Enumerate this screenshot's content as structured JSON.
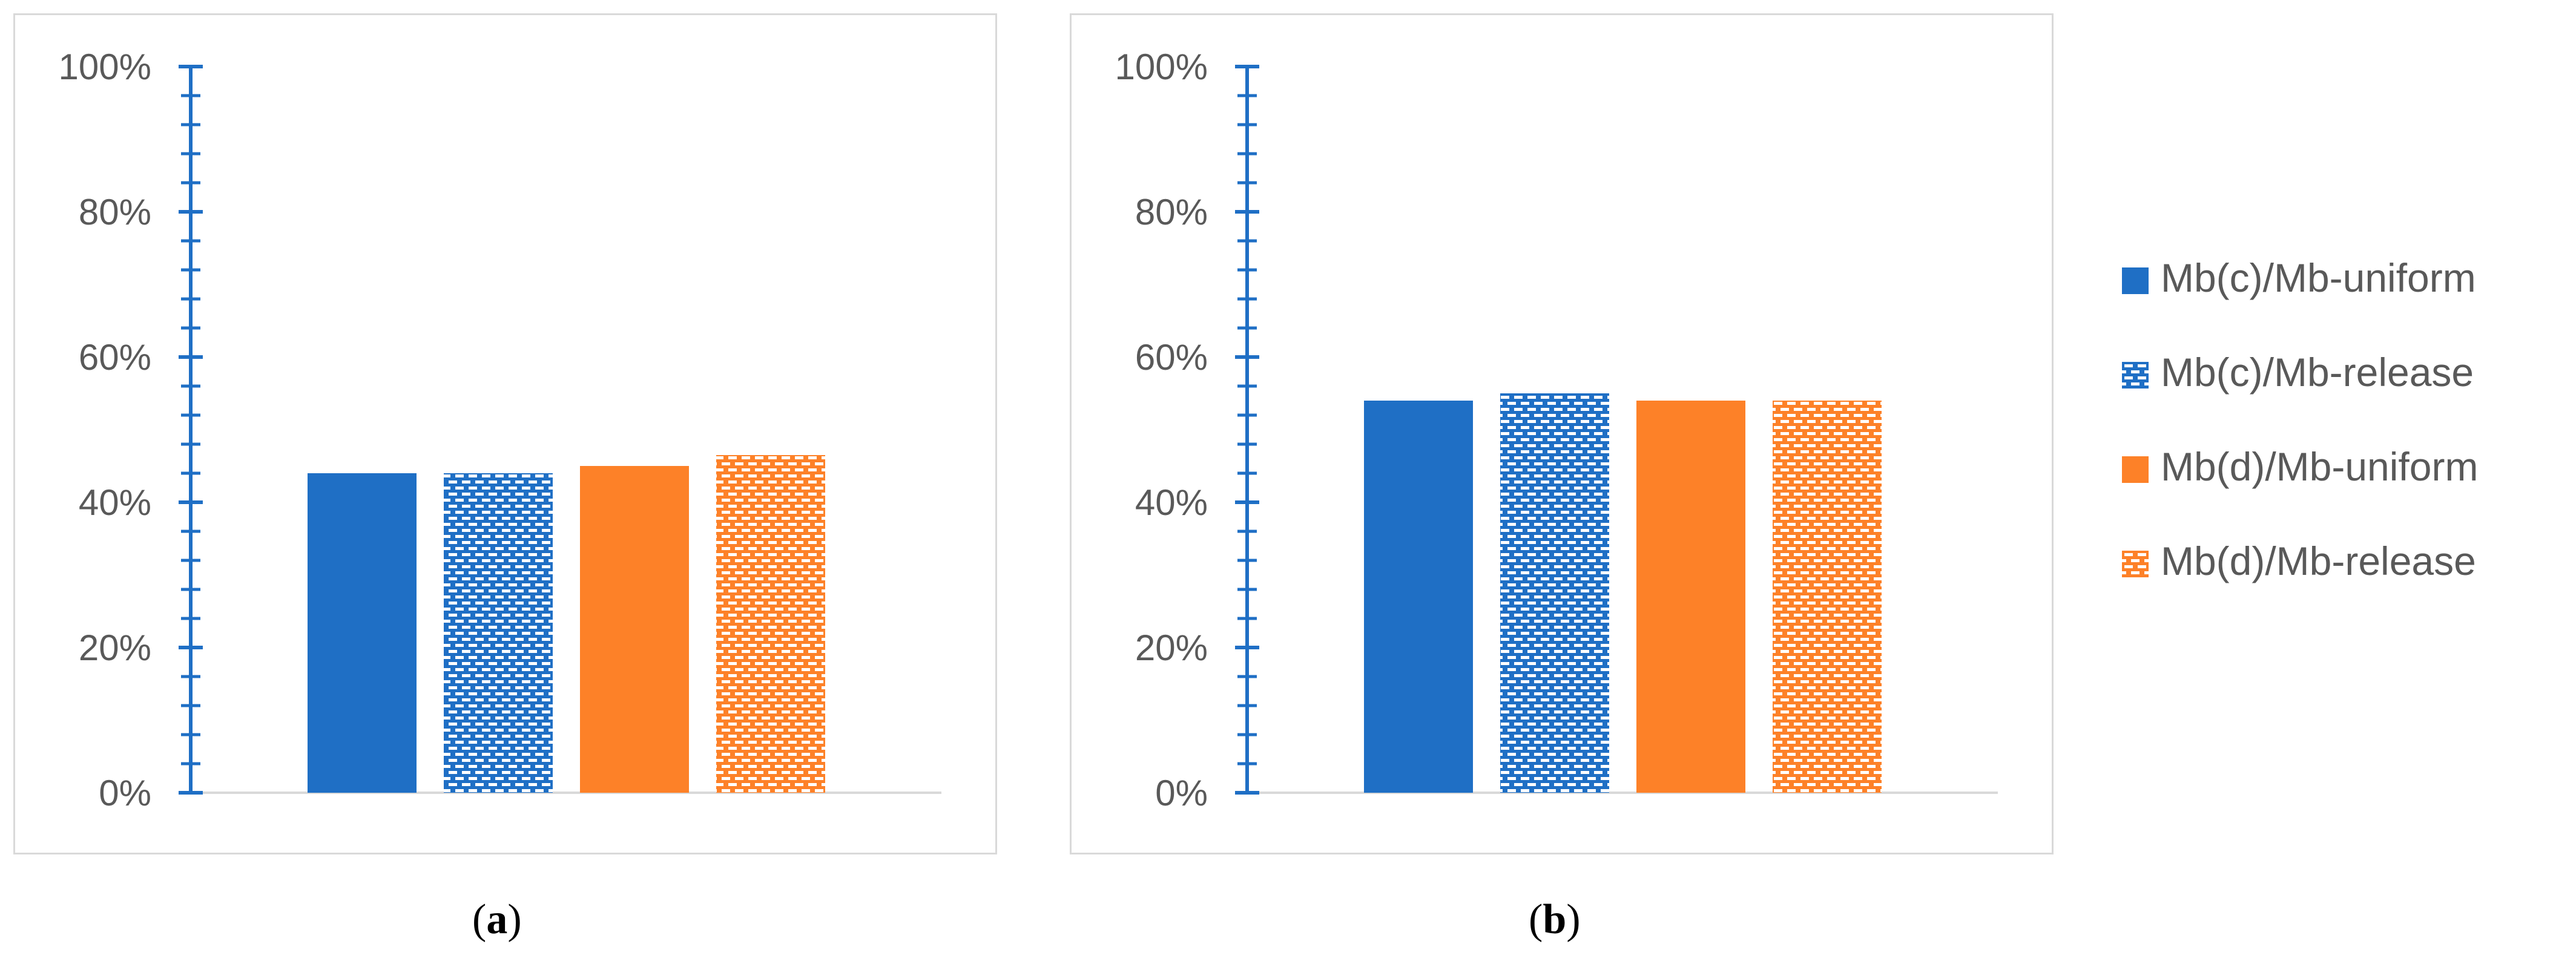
{
  "chart_data": [
    {
      "type": "bar",
      "panel": "(a)",
      "series": [
        {
          "name": "Mb(c)/Mb-uniform",
          "value": 44
        },
        {
          "name": "Mb(c)/Mb-release",
          "value": 44
        },
        {
          "name": "Mb(d)/Mb-uniform",
          "value": 45
        },
        {
          "name": "Mb(d)/Mb-release",
          "value": 46.5
        }
      ],
      "ylim": [
        0,
        100
      ],
      "yticks": [
        "0%",
        "20%",
        "40%",
        "60%",
        "80%",
        "100%"
      ],
      "grid": false,
      "legend": "right (shared)"
    },
    {
      "type": "bar",
      "panel": "(b)",
      "series": [
        {
          "name": "Mb(c)/Mb-uniform",
          "value": 54
        },
        {
          "name": "Mb(c)/Mb-release",
          "value": 55
        },
        {
          "name": "Mb(d)/Mb-uniform",
          "value": 54
        },
        {
          "name": "Mb(d)/Mb-release",
          "value": 54
        }
      ],
      "ylim": [
        0,
        100
      ],
      "yticks": [
        "0%",
        "20%",
        "40%",
        "60%",
        "80%",
        "100%"
      ],
      "grid": false,
      "legend": "right (shared)"
    }
  ],
  "legend": {
    "items": [
      {
        "label": "Mb(c)/Mb-uniform",
        "color": "#1f6fc5",
        "pattern": "solid"
      },
      {
        "label": "Mb(c)/Mb-release",
        "color": "#1f6fc5",
        "pattern": "dotted"
      },
      {
        "label": "Mb(d)/Mb-uniform",
        "color": "#fd8128",
        "pattern": "solid"
      },
      {
        "label": "Mb(d)/Mb-release",
        "color": "#fd8128",
        "pattern": "dotted"
      }
    ]
  },
  "captions": {
    "a_open": "(",
    "a_letter": "a",
    "a_close": ")",
    "b_open": "(",
    "b_letter": "b",
    "b_close": ")"
  },
  "colors": {
    "axis": "#1f6fc5",
    "blue": "#1f6fc5",
    "orange": "#fd8128",
    "frame": "#d9d9d9"
  }
}
